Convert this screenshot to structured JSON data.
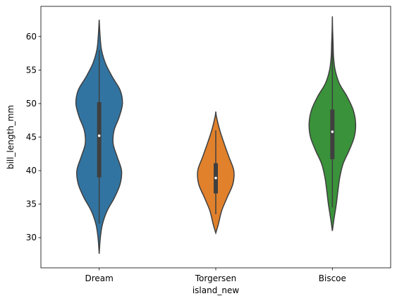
{
  "chart_data": {
    "type": "violin",
    "xlabel": "island_new",
    "ylabel": "bill_length_mm",
    "ylim": [
      25.5,
      64.5
    ],
    "yticks": [
      30,
      35,
      40,
      45,
      50,
      55,
      60
    ],
    "grid": false,
    "categories": [
      "Dream",
      "Torgersen",
      "Biscoe"
    ],
    "colors": [
      "#3274a1",
      "#e1812c",
      "#3a923a"
    ],
    "violins": [
      {
        "category": "Dream",
        "min": 27.6,
        "max": 62.5,
        "q1": 39.0,
        "median": 45.2,
        "q3": 50.2,
        "whisker_low": 32.1,
        "whisker_high": 58.0,
        "density_y": [
          27.6,
          30,
          32,
          34,
          36,
          38,
          40,
          42,
          44,
          46,
          48,
          50,
          52,
          54,
          56,
          58,
          60,
          62.5
        ],
        "density_w": [
          0.0,
          0.05,
          0.14,
          0.34,
          0.66,
          0.9,
          0.96,
          0.78,
          0.6,
          0.64,
          0.86,
          1.0,
          0.9,
          0.56,
          0.27,
          0.1,
          0.04,
          0.0
        ]
      },
      {
        "category": "Torgersen",
        "min": 30.7,
        "max": 48.8,
        "q1": 36.6,
        "median": 38.9,
        "q3": 41.1,
        "whisker_low": 33.5,
        "whisker_high": 46.0,
        "density_y": [
          30.7,
          32,
          34,
          36,
          38,
          40,
          42,
          44,
          46,
          48,
          48.8
        ],
        "density_w": [
          0.0,
          0.14,
          0.32,
          0.62,
          0.93,
          0.98,
          0.72,
          0.46,
          0.22,
          0.04,
          0.0
        ],
        "width_scale": 0.79
      },
      {
        "category": "Biscoe",
        "min": 31.0,
        "max": 63.0,
        "q1": 41.7,
        "median": 45.8,
        "q3": 49.1,
        "whisker_low": 34.5,
        "whisker_high": 59.6,
        "density_y": [
          31,
          33,
          35,
          37,
          39,
          41,
          43,
          45,
          47,
          49,
          51,
          53,
          55,
          57,
          59,
          61,
          63
        ],
        "density_w": [
          0.0,
          0.08,
          0.17,
          0.24,
          0.32,
          0.46,
          0.72,
          0.94,
          1.0,
          0.9,
          0.64,
          0.3,
          0.12,
          0.05,
          0.03,
          0.01,
          0.0
        ]
      }
    ]
  }
}
